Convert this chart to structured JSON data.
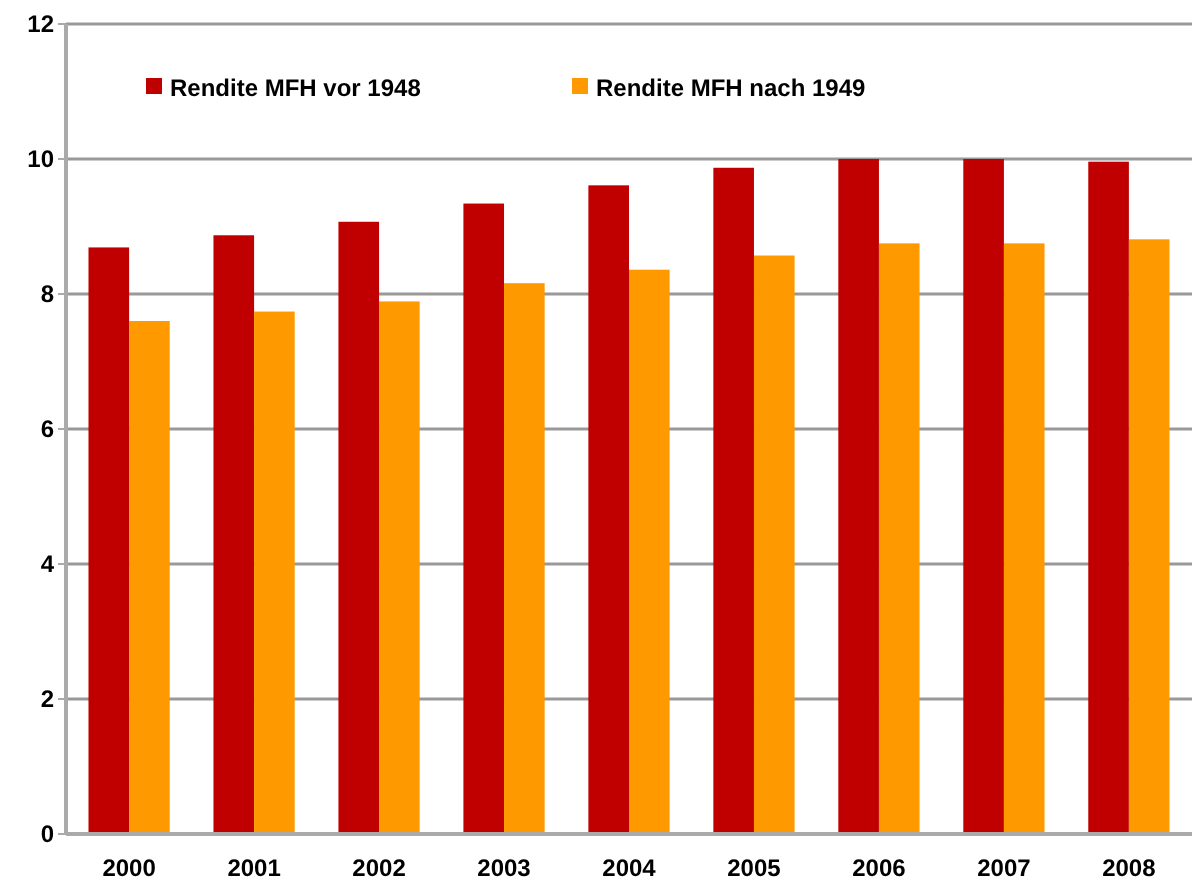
{
  "chart_data": {
    "type": "bar",
    "categories": [
      "2000",
      "2001",
      "2002",
      "2003",
      "2004",
      "2005",
      "2006",
      "2007",
      "2008"
    ],
    "series": [
      {
        "name": "Rendite MFH vor 1948",
        "color": "#c00000",
        "values": [
          8.69,
          8.87,
          9.07,
          9.34,
          9.61,
          9.87,
          10.0,
          10.0,
          9.96
        ]
      },
      {
        "name": "Rendite MFH nach 1949",
        "color": "#ff9900",
        "values": [
          7.6,
          7.74,
          7.89,
          8.16,
          8.36,
          8.57,
          8.75,
          8.75,
          8.81
        ]
      }
    ],
    "ylim": [
      0,
      12
    ],
    "yticks": [
      0,
      2,
      4,
      6,
      8,
      10,
      12
    ],
    "grid": "y",
    "legend": "top left"
  }
}
